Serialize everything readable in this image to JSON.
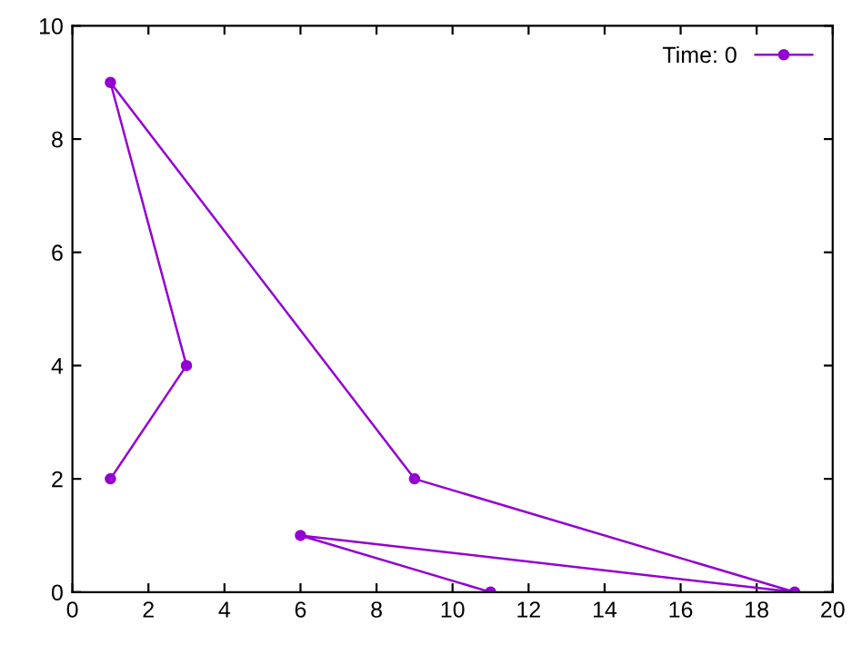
{
  "chart_data": {
    "type": "line",
    "x": [
      1,
      3,
      1,
      9,
      19,
      6,
      11
    ],
    "series": [
      {
        "name": "Time: 0",
        "color": "#9400d3",
        "values": [
          2,
          4,
          9,
          2,
          0,
          1,
          0
        ]
      }
    ],
    "xlim": [
      0,
      20
    ],
    "xticks": [
      0,
      2,
      4,
      6,
      8,
      10,
      12,
      14,
      16,
      18,
      20
    ],
    "ylim": [
      0,
      10
    ],
    "yticks": [
      0,
      2,
      4,
      6,
      8,
      10
    ],
    "grid": false,
    "legend": "top right",
    "marker": "circle",
    "line_style": "solid"
  }
}
